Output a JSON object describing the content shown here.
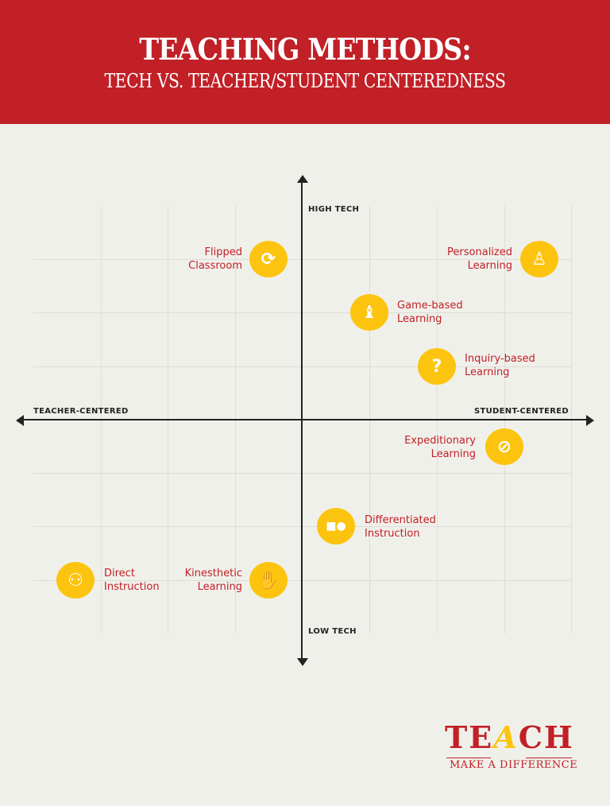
{
  "header": {
    "title": "TEACHING METHODS:",
    "subtitle": "TECH VS. TEACHER/STUDENT CENTEREDNESS"
  },
  "axes": {
    "top": "HIGH TECH",
    "bottom": "LOW TECH",
    "left": "TEACHER-CENTERED",
    "right": "STUDENT-CENTERED"
  },
  "items": [
    {
      "line1": "Flipped",
      "line2": "Classroom",
      "icon": "refresh-icon",
      "glyph": "⟳"
    },
    {
      "line1": "Personalized",
      "line2": "Learning",
      "icon": "person-icon",
      "glyph": "👤"
    },
    {
      "line1": "Game-based",
      "line2": "Learning",
      "icon": "chess-bishop-icon",
      "glyph": "♝"
    },
    {
      "line1": "Inquiry-based",
      "line2": "Learning",
      "icon": "question-bubble-icon",
      "glyph": "?"
    },
    {
      "line1": "Expeditionary",
      "line2": "Learning",
      "icon": "compass-icon",
      "glyph": "⊘"
    },
    {
      "line1": "Differentiated",
      "line2": "Instruction",
      "icon": "shapes-icon",
      "glyph": "▲●"
    },
    {
      "line1": "Direct",
      "line2": "Instruction",
      "icon": "group-icon",
      "glyph": "⚇"
    },
    {
      "line1": "Kinesthetic",
      "line2": "Learning",
      "icon": "hand-icon",
      "glyph": "✋"
    }
  ],
  "logo": {
    "word": "TEACH",
    "tagline": "MAKE A DIFFERENCE"
  },
  "colors": {
    "header": "#c12026",
    "accent": "#fcc40f",
    "background": "#f0f0eb",
    "label": "#c12026"
  }
}
